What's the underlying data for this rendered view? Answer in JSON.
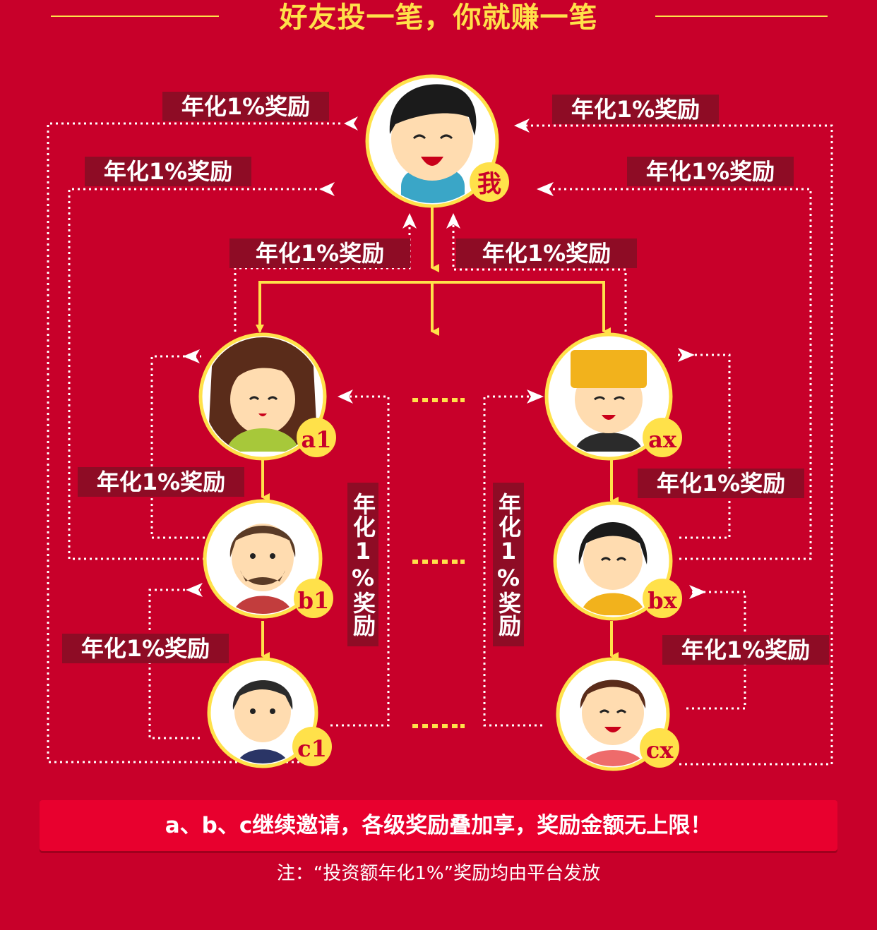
{
  "title": "好友投一笔，你就赚一笔",
  "reward_label": "年化1%奖励",
  "nodes": {
    "me": "我",
    "a1": "a1",
    "b1": "b1",
    "c1": "c1",
    "ax": "ax",
    "bx": "bx",
    "cx": "cx"
  },
  "ellipsis": "......",
  "footer_banner": "a、b、c继续邀请，各级奖励叠加享，奖励金额无上限！",
  "footer_note": "注：“投资额年化1%”奖励均由平台发放",
  "colors": {
    "background": "#c8002a",
    "accent_yellow": "#ffe14a",
    "tag_background": "#8e0c25",
    "banner": "#e8002e"
  }
}
